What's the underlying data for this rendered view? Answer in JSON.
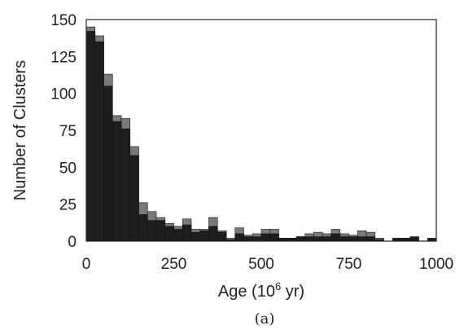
{
  "chart_data": {
    "type": "bar",
    "stacked": false,
    "overlapping": true,
    "xlabel_prefix": "Age (10",
    "xlabel_exp": "6",
    "xlabel_suffix": " yr)",
    "ylabel": "Number of Clusters",
    "caption": "(a)",
    "xlim": [
      0,
      1000
    ],
    "ylim": [
      0,
      150
    ],
    "x_ticks": [
      0,
      250,
      500,
      750,
      1000
    ],
    "y_ticks": [
      0,
      25,
      50,
      75,
      100,
      125,
      150
    ],
    "grid": false,
    "legend": "none",
    "bin_width": 25,
    "bin_starts": [
      0,
      25,
      50,
      75,
      100,
      125,
      150,
      175,
      200,
      225,
      250,
      275,
      300,
      325,
      350,
      375,
      400,
      425,
      450,
      475,
      500,
      525,
      550,
      575,
      600,
      625,
      650,
      675,
      700,
      725,
      750,
      775,
      800,
      825,
      850,
      875,
      900,
      925,
      950,
      975
    ],
    "series": [
      {
        "color": "#7a7a7a",
        "values": [
          145,
          139,
          113,
          85,
          83,
          64,
          26,
          20,
          16,
          12,
          10,
          15,
          8,
          8,
          16,
          7,
          2,
          9,
          4,
          5,
          8,
          8,
          2,
          2,
          3,
          5,
          6,
          5,
          8,
          5,
          4,
          7,
          6,
          2,
          0,
          1,
          2,
          2,
          0,
          1
        ]
      },
      {
        "color": "#1e1e1e",
        "values": [
          142,
          135,
          105,
          81,
          76,
          58,
          18,
          14,
          14,
          10,
          8,
          11,
          6,
          7,
          10,
          6,
          1,
          5,
          3,
          3,
          5,
          5,
          2,
          2,
          3,
          3,
          3,
          3,
          5,
          3,
          3,
          3,
          3,
          1,
          0,
          2,
          2,
          3,
          0,
          2
        ]
      }
    ]
  }
}
